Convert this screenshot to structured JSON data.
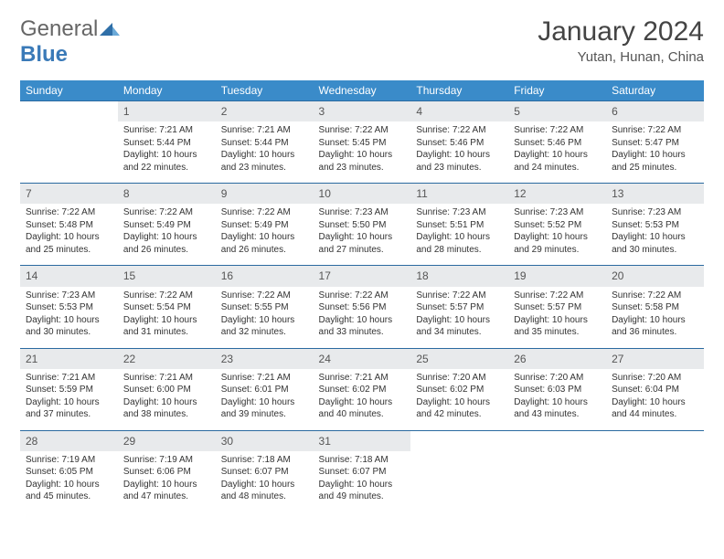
{
  "logo": {
    "general": "General",
    "blue": "Blue"
  },
  "title": "January 2024",
  "location": "Yutan, Hunan, China",
  "colors": {
    "header_bg": "#3a8bc9",
    "header_border": "#2a6aa0",
    "daynum_bg": "#e8eaec",
    "text": "#333333",
    "logo_gray": "#666666",
    "logo_blue": "#3a7ab8"
  },
  "typography": {
    "title_fontsize": 30,
    "location_fontsize": 15,
    "header_fontsize": 12,
    "cell_fontsize": 10
  },
  "weekdays": [
    "Sunday",
    "Monday",
    "Tuesday",
    "Wednesday",
    "Thursday",
    "Friday",
    "Saturday"
  ],
  "days": [
    {
      "n": "",
      "sunrise": "",
      "sunset": "",
      "daylight": ""
    },
    {
      "n": "1",
      "sunrise": "Sunrise: 7:21 AM",
      "sunset": "Sunset: 5:44 PM",
      "daylight": "Daylight: 10 hours and 22 minutes."
    },
    {
      "n": "2",
      "sunrise": "Sunrise: 7:21 AM",
      "sunset": "Sunset: 5:44 PM",
      "daylight": "Daylight: 10 hours and 23 minutes."
    },
    {
      "n": "3",
      "sunrise": "Sunrise: 7:22 AM",
      "sunset": "Sunset: 5:45 PM",
      "daylight": "Daylight: 10 hours and 23 minutes."
    },
    {
      "n": "4",
      "sunrise": "Sunrise: 7:22 AM",
      "sunset": "Sunset: 5:46 PM",
      "daylight": "Daylight: 10 hours and 23 minutes."
    },
    {
      "n": "5",
      "sunrise": "Sunrise: 7:22 AM",
      "sunset": "Sunset: 5:46 PM",
      "daylight": "Daylight: 10 hours and 24 minutes."
    },
    {
      "n": "6",
      "sunrise": "Sunrise: 7:22 AM",
      "sunset": "Sunset: 5:47 PM",
      "daylight": "Daylight: 10 hours and 25 minutes."
    },
    {
      "n": "7",
      "sunrise": "Sunrise: 7:22 AM",
      "sunset": "Sunset: 5:48 PM",
      "daylight": "Daylight: 10 hours and 25 minutes."
    },
    {
      "n": "8",
      "sunrise": "Sunrise: 7:22 AM",
      "sunset": "Sunset: 5:49 PM",
      "daylight": "Daylight: 10 hours and 26 minutes."
    },
    {
      "n": "9",
      "sunrise": "Sunrise: 7:22 AM",
      "sunset": "Sunset: 5:49 PM",
      "daylight": "Daylight: 10 hours and 26 minutes."
    },
    {
      "n": "10",
      "sunrise": "Sunrise: 7:23 AM",
      "sunset": "Sunset: 5:50 PM",
      "daylight": "Daylight: 10 hours and 27 minutes."
    },
    {
      "n": "11",
      "sunrise": "Sunrise: 7:23 AM",
      "sunset": "Sunset: 5:51 PM",
      "daylight": "Daylight: 10 hours and 28 minutes."
    },
    {
      "n": "12",
      "sunrise": "Sunrise: 7:23 AM",
      "sunset": "Sunset: 5:52 PM",
      "daylight": "Daylight: 10 hours and 29 minutes."
    },
    {
      "n": "13",
      "sunrise": "Sunrise: 7:23 AM",
      "sunset": "Sunset: 5:53 PM",
      "daylight": "Daylight: 10 hours and 30 minutes."
    },
    {
      "n": "14",
      "sunrise": "Sunrise: 7:23 AM",
      "sunset": "Sunset: 5:53 PM",
      "daylight": "Daylight: 10 hours and 30 minutes."
    },
    {
      "n": "15",
      "sunrise": "Sunrise: 7:22 AM",
      "sunset": "Sunset: 5:54 PM",
      "daylight": "Daylight: 10 hours and 31 minutes."
    },
    {
      "n": "16",
      "sunrise": "Sunrise: 7:22 AM",
      "sunset": "Sunset: 5:55 PM",
      "daylight": "Daylight: 10 hours and 32 minutes."
    },
    {
      "n": "17",
      "sunrise": "Sunrise: 7:22 AM",
      "sunset": "Sunset: 5:56 PM",
      "daylight": "Daylight: 10 hours and 33 minutes."
    },
    {
      "n": "18",
      "sunrise": "Sunrise: 7:22 AM",
      "sunset": "Sunset: 5:57 PM",
      "daylight": "Daylight: 10 hours and 34 minutes."
    },
    {
      "n": "19",
      "sunrise": "Sunrise: 7:22 AM",
      "sunset": "Sunset: 5:57 PM",
      "daylight": "Daylight: 10 hours and 35 minutes."
    },
    {
      "n": "20",
      "sunrise": "Sunrise: 7:22 AM",
      "sunset": "Sunset: 5:58 PM",
      "daylight": "Daylight: 10 hours and 36 minutes."
    },
    {
      "n": "21",
      "sunrise": "Sunrise: 7:21 AM",
      "sunset": "Sunset: 5:59 PM",
      "daylight": "Daylight: 10 hours and 37 minutes."
    },
    {
      "n": "22",
      "sunrise": "Sunrise: 7:21 AM",
      "sunset": "Sunset: 6:00 PM",
      "daylight": "Daylight: 10 hours and 38 minutes."
    },
    {
      "n": "23",
      "sunrise": "Sunrise: 7:21 AM",
      "sunset": "Sunset: 6:01 PM",
      "daylight": "Daylight: 10 hours and 39 minutes."
    },
    {
      "n": "24",
      "sunrise": "Sunrise: 7:21 AM",
      "sunset": "Sunset: 6:02 PM",
      "daylight": "Daylight: 10 hours and 40 minutes."
    },
    {
      "n": "25",
      "sunrise": "Sunrise: 7:20 AM",
      "sunset": "Sunset: 6:02 PM",
      "daylight": "Daylight: 10 hours and 42 minutes."
    },
    {
      "n": "26",
      "sunrise": "Sunrise: 7:20 AM",
      "sunset": "Sunset: 6:03 PM",
      "daylight": "Daylight: 10 hours and 43 minutes."
    },
    {
      "n": "27",
      "sunrise": "Sunrise: 7:20 AM",
      "sunset": "Sunset: 6:04 PM",
      "daylight": "Daylight: 10 hours and 44 minutes."
    },
    {
      "n": "28",
      "sunrise": "Sunrise: 7:19 AM",
      "sunset": "Sunset: 6:05 PM",
      "daylight": "Daylight: 10 hours and 45 minutes."
    },
    {
      "n": "29",
      "sunrise": "Sunrise: 7:19 AM",
      "sunset": "Sunset: 6:06 PM",
      "daylight": "Daylight: 10 hours and 47 minutes."
    },
    {
      "n": "30",
      "sunrise": "Sunrise: 7:18 AM",
      "sunset": "Sunset: 6:07 PM",
      "daylight": "Daylight: 10 hours and 48 minutes."
    },
    {
      "n": "31",
      "sunrise": "Sunrise: 7:18 AM",
      "sunset": "Sunset: 6:07 PM",
      "daylight": "Daylight: 10 hours and 49 minutes."
    },
    {
      "n": "",
      "sunrise": "",
      "sunset": "",
      "daylight": ""
    },
    {
      "n": "",
      "sunrise": "",
      "sunset": "",
      "daylight": ""
    },
    {
      "n": "",
      "sunrise": "",
      "sunset": "",
      "daylight": ""
    }
  ]
}
